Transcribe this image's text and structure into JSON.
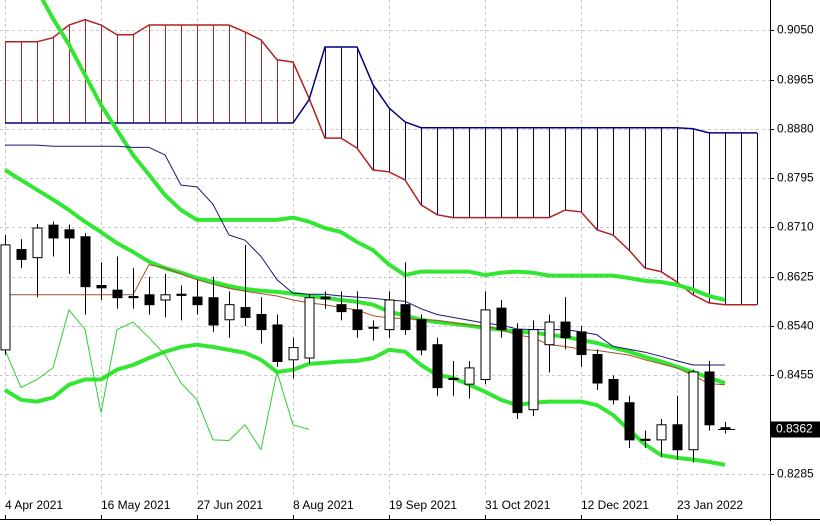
{
  "chart_data": {
    "type": "candlestick",
    "categories": [
      "4 Apr 2021",
      null,
      null,
      null,
      null,
      null,
      "16 May 2021",
      null,
      null,
      null,
      null,
      null,
      "27 Jun 2021",
      null,
      null,
      null,
      null,
      null,
      "8 Aug 2021",
      null,
      null,
      null,
      null,
      null,
      "19 Sep 2021",
      null,
      null,
      null,
      null,
      null,
      "31 Oct 2021",
      null,
      null,
      null,
      null,
      null,
      "12 Dec 2021",
      null,
      null,
      null,
      null,
      null,
      "23 Jan 2022",
      null,
      null,
      null,
      null,
      null
    ],
    "ylim": [
      0.8249,
      0.9102
    ],
    "yticks": [
      {
        "value": 0.905,
        "label": "0.9050"
      },
      0.8965,
      {
        "value": 0.888,
        "label": "0.8880"
      },
      0.8795,
      {
        "value": 0.871,
        "label": "0.8710"
      },
      0.8625,
      {
        "value": 0.854,
        "label": "0.8540"
      },
      0.8455,
      0.8285
    ],
    "grid": true,
    "last_price": 0.8362,
    "up_color": "#ffffff",
    "down_color": "#000000",
    "open": [
      0.8499,
      0.8672,
      0.8658,
      0.8714,
      0.8706,
      0.8694,
      0.861,
      0.8602,
      0.8591,
      0.8594,
      0.8585,
      0.8595,
      0.859,
      0.8589,
      0.8551,
      0.8572,
      0.856,
      0.8542,
      0.8482,
      0.8485,
      0.859,
      0.8577,
      0.8568,
      0.8538,
      0.8534,
      0.8577,
      0.8551,
      0.8508,
      0.845,
      0.844,
      0.8448,
      0.8571,
      0.8534,
      0.8396,
      0.8508,
      0.8547,
      0.853,
      0.8491,
      0.8448,
      0.8408,
      0.8345,
      0.8344,
      0.837,
      0.8327,
      0.8461,
      0.8365,
      null,
      null
    ],
    "high": [
      0.8697,
      0.869,
      0.8716,
      0.872,
      0.8715,
      0.87,
      0.865,
      0.866,
      0.864,
      0.8625,
      0.863,
      0.861,
      0.862,
      0.8625,
      0.86,
      0.868,
      0.859,
      0.856,
      0.852,
      0.8595,
      0.86,
      0.86,
      0.86,
      0.855,
      0.86,
      0.865,
      0.856,
      0.852,
      0.848,
      0.848,
      0.86,
      0.8585,
      0.8545,
      0.855,
      0.856,
      0.859,
      0.854,
      0.85,
      0.8455,
      0.842,
      0.836,
      0.838,
      0.842,
      0.8465,
      0.848,
      0.8375,
      null,
      null
    ],
    "low": [
      0.8491,
      0.864,
      0.859,
      0.866,
      0.863,
      0.856,
      0.8585,
      0.857,
      0.857,
      0.856,
      0.8555,
      0.855,
      0.856,
      0.853,
      0.852,
      0.854,
      0.851,
      0.847,
      0.845,
      0.8475,
      0.857,
      0.855,
      0.852,
      0.8515,
      0.852,
      0.8525,
      0.849,
      0.842,
      0.842,
      0.8415,
      0.844,
      0.852,
      0.838,
      0.8385,
      0.846,
      0.85,
      0.847,
      0.843,
      0.8405,
      0.833,
      0.833,
      0.8315,
      0.831,
      0.8305,
      0.836,
      0.8355,
      null,
      null
    ],
    "close": [
      0.868,
      0.8655,
      0.8709,
      0.8692,
      0.8692,
      0.8608,
      0.8606,
      0.8589,
      0.8589,
      0.8577,
      0.8594,
      0.8593,
      0.8577,
      0.8542,
      0.8577,
      0.8555,
      0.8534,
      0.8479,
      0.8503,
      0.8589,
      0.8587,
      0.8565,
      0.8534,
      0.8537,
      0.8585,
      0.8534,
      0.8499,
      0.8434,
      0.8448,
      0.8468,
      0.8568,
      0.8534,
      0.8391,
      0.8534,
      0.8547,
      0.852,
      0.8491,
      0.8442,
      0.8413,
      0.8344,
      0.8343,
      0.837,
      0.8327,
      0.8461,
      0.837,
      0.8362,
      null,
      null
    ],
    "cloud": {
      "a_color": "#b22222",
      "b_color": "#000080",
      "a": [
        0.903,
        0.903,
        0.903,
        0.9037,
        0.9059,
        0.9068,
        0.9059,
        0.9042,
        0.9042,
        0.9059,
        0.9059,
        0.9059,
        0.9059,
        0.9059,
        0.9059,
        0.9047,
        0.9033,
        0.8999,
        0.8995,
        0.8933,
        0.8864,
        0.8864,
        0.8847,
        0.8809,
        0.8806,
        0.8792,
        0.8749,
        0.8732,
        0.8727,
        0.8727,
        0.8727,
        0.8727,
        0.8727,
        0.8727,
        0.8727,
        0.874,
        0.8737,
        0.8706,
        0.8697,
        0.8671,
        0.864,
        0.8634,
        0.8616,
        0.8594,
        0.858,
        0.8577,
        0.8577,
        0.8577
      ],
      "b": [
        0.889,
        0.889,
        0.889,
        0.889,
        0.889,
        0.889,
        0.889,
        0.889,
        0.889,
        0.889,
        0.889,
        0.889,
        0.889,
        0.889,
        0.889,
        0.889,
        0.889,
        0.889,
        0.889,
        0.893,
        0.9021,
        0.9021,
        0.9021,
        0.8956,
        0.8916,
        0.8892,
        0.8882,
        0.8882,
        0.8882,
        0.8882,
        0.8882,
        0.8882,
        0.8882,
        0.8882,
        0.8882,
        0.8882,
        0.8882,
        0.8882,
        0.8882,
        0.8882,
        0.8882,
        0.8882,
        0.8882,
        0.888,
        0.8873,
        0.8873,
        0.8873,
        0.8873
      ]
    },
    "lines": [
      {
        "color": "#32e632",
        "width": 4,
        "values": [
          null,
          null,
          0.912,
          0.907,
          0.9025,
          0.8973,
          0.8921,
          0.8878,
          0.8835,
          0.8801,
          0.8766,
          0.874,
          0.8723,
          0.8723,
          0.8723,
          0.8723,
          0.8723,
          0.8723,
          0.8727,
          0.872,
          0.8709,
          0.8702,
          0.8685,
          0.8671,
          0.8646,
          0.8628,
          0.8634,
          0.8634,
          0.8634,
          0.8634,
          0.8628,
          0.8632,
          0.8634,
          0.8632,
          0.8627,
          0.8627,
          0.8627,
          0.8627,
          0.8627,
          0.8623,
          0.8618,
          0.8616,
          0.8611,
          0.8603,
          0.8592,
          0.8585,
          null,
          null
        ]
      },
      {
        "color": "#32e632",
        "width": 4,
        "values": [
          0.8809,
          0.8792,
          0.8775,
          0.8758,
          0.874,
          0.872,
          0.8702,
          0.8683,
          0.8668,
          0.8651,
          0.864,
          0.8632,
          0.8623,
          0.8616,
          0.8609,
          0.8604,
          0.8601,
          0.8599,
          0.8596,
          0.8592,
          0.8589,
          0.8585,
          0.8582,
          0.8577,
          0.8565,
          0.8558,
          0.8551,
          0.8547,
          0.8544,
          0.8541,
          0.8537,
          0.8534,
          0.853,
          0.8529,
          0.8525,
          0.8522,
          0.8516,
          0.8511,
          0.8503,
          0.8496,
          0.8487,
          0.8479,
          0.847,
          0.8461,
          0.8451,
          0.8442,
          null,
          null
        ]
      },
      {
        "color": "#32e632",
        "width": 4,
        "values": [
          0.843,
          0.8413,
          0.841,
          0.8417,
          0.8439,
          0.8448,
          0.8448,
          0.8465,
          0.8473,
          0.8485,
          0.8496,
          0.8504,
          0.8508,
          0.8504,
          0.8499,
          0.8494,
          0.8482,
          0.8461,
          0.8465,
          0.8475,
          0.8477,
          0.8479,
          0.848,
          0.8485,
          0.8499,
          0.8496,
          0.8473,
          0.8456,
          0.8451,
          0.8439,
          0.8427,
          0.8413,
          0.8404,
          0.8408,
          0.841,
          0.841,
          0.841,
          0.8404,
          0.8387,
          0.8361,
          0.8336,
          0.8318,
          0.8313,
          0.831,
          0.8306,
          0.8301,
          null,
          null
        ]
      },
      {
        "color": "#191970",
        "width": 1,
        "values": [
          0.8852,
          0.8852,
          0.8852,
          0.885,
          0.885,
          0.885,
          0.885,
          0.885,
          0.8848,
          0.8848,
          0.8835,
          0.8783,
          0.878,
          0.875,
          0.8697,
          0.8688,
          0.866,
          0.862,
          0.8597,
          0.8595,
          0.8595,
          0.8592,
          0.859,
          0.8588,
          0.8585,
          0.8583,
          0.857,
          0.856,
          0.8555,
          0.855,
          0.8545,
          0.8542,
          0.8535,
          0.8534,
          0.8534,
          0.8534,
          0.853,
          0.8525,
          0.8505,
          0.85,
          0.8495,
          0.8488,
          0.848,
          0.8473,
          0.8473,
          0.8473,
          null,
          null
        ]
      },
      {
        "color": "#a0522d",
        "width": 1,
        "values": [
          0.8594,
          0.8594,
          0.8594,
          0.8594,
          0.8594,
          0.8594,
          0.8594,
          0.8594,
          0.8594,
          0.8646,
          0.864,
          0.863,
          0.862,
          0.8612,
          0.8605,
          0.86,
          0.8596,
          0.8592,
          0.8585,
          0.858,
          0.8577,
          0.8572,
          0.8568,
          0.8558,
          0.8554,
          0.8553,
          0.8551,
          0.855,
          0.8546,
          0.8542,
          0.854,
          0.8534,
          0.8525,
          0.852,
          0.8508,
          0.8505,
          0.85,
          0.8498,
          0.8494,
          0.849,
          0.8482,
          0.8475,
          0.8468,
          0.8455,
          0.8441,
          0.8439,
          null,
          null
        ]
      },
      {
        "color": "#32cd32",
        "width": 1,
        "values": [
          0.8499,
          0.8434,
          0.8448,
          0.8468,
          0.8568,
          0.8534,
          0.8391,
          0.8534,
          0.8547,
          0.852,
          0.8491,
          0.8442,
          0.8413,
          0.8344,
          0.8343,
          0.837,
          0.8327,
          0.8461,
          0.837,
          0.8362,
          null,
          null,
          null,
          null,
          null,
          null,
          null,
          null,
          null,
          null,
          null,
          null,
          null,
          null,
          null,
          null,
          null,
          null,
          null,
          null,
          null,
          null,
          null,
          null,
          null,
          null,
          null,
          null
        ]
      }
    ]
  }
}
